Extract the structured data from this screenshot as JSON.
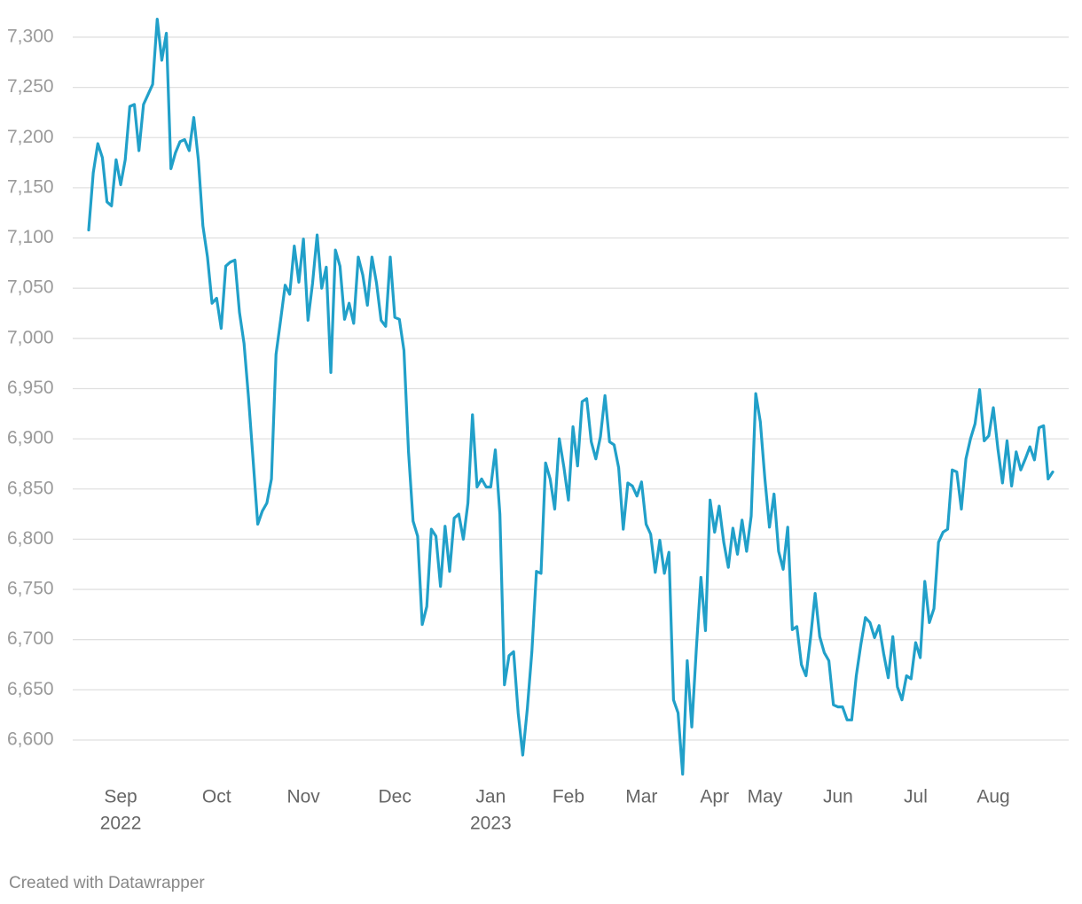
{
  "chart_data": {
    "type": "line",
    "source": "Created with Datawrapper",
    "categories": [
      null,
      null,
      null,
      null,
      null,
      null,
      null,
      [
        "Sep",
        "2022"
      ],
      null,
      null,
      null,
      null,
      null,
      null,
      null,
      null,
      null,
      null,
      null,
      null,
      null,
      null,
      null,
      null,
      null,
      null,
      null,
      null,
      "Oct",
      null,
      null,
      null,
      null,
      null,
      null,
      null,
      null,
      null,
      null,
      null,
      null,
      null,
      null,
      null,
      null,
      null,
      null,
      "Nov",
      null,
      null,
      null,
      null,
      null,
      null,
      null,
      null,
      null,
      null,
      null,
      null,
      null,
      null,
      null,
      null,
      null,
      null,
      null,
      "Dec",
      null,
      null,
      null,
      null,
      null,
      null,
      null,
      null,
      null,
      null,
      null,
      null,
      null,
      null,
      null,
      null,
      null,
      null,
      null,
      null,
      [
        "Jan",
        "2023"
      ],
      null,
      null,
      null,
      null,
      null,
      null,
      null,
      null,
      null,
      null,
      null,
      null,
      null,
      null,
      null,
      null,
      "Feb",
      null,
      null,
      null,
      null,
      null,
      null,
      null,
      null,
      null,
      null,
      null,
      null,
      null,
      null,
      null,
      "Mar",
      null,
      null,
      null,
      null,
      null,
      null,
      null,
      null,
      null,
      null,
      null,
      null,
      null,
      null,
      null,
      "Apr",
      null,
      null,
      null,
      null,
      null,
      null,
      null,
      null,
      null,
      null,
      "May",
      null,
      null,
      null,
      null,
      null,
      null,
      null,
      null,
      null,
      null,
      null,
      null,
      null,
      null,
      null,
      "Jun",
      null,
      null,
      null,
      null,
      null,
      null,
      null,
      null,
      null,
      null,
      null,
      null,
      null,
      null,
      null,
      null,
      "Jul",
      null,
      null,
      null,
      null,
      null,
      null,
      null,
      null,
      null,
      null,
      null,
      null,
      null,
      null,
      null,
      null,
      "Aug",
      null,
      null,
      null,
      null,
      null,
      null,
      null,
      null,
      null,
      null,
      null,
      null,
      null
    ],
    "series": [
      {
        "color": "#21a0c9",
        "values": [
          7108,
          7165,
          7194,
          7180,
          7136,
          7132,
          7178,
          7153,
          7178,
          7231,
          7233,
          7187,
          7233,
          7243,
          7253,
          7318,
          7277,
          7304,
          7169,
          7185,
          7196,
          7198,
          7187,
          7220,
          7178,
          7112,
          7081,
          7035,
          7040,
          7010,
          7072,
          7076,
          7078,
          7026,
          6995,
          6940,
          6878,
          6815,
          6828,
          6836,
          6860,
          6984,
          7018,
          7053,
          7044,
          7092,
          7056,
          7099,
          7018,
          7055,
          7103,
          7050,
          7071,
          6966,
          7088,
          7072,
          7019,
          7035,
          7015,
          7081,
          7063,
          7033,
          7081,
          7055,
          7018,
          7012,
          7081,
          7021,
          7019,
          6988,
          6887,
          6818,
          6803,
          6715,
          6733,
          6810,
          6803,
          6753,
          6813,
          6768,
          6821,
          6825,
          6800,
          6836,
          6924,
          6852,
          6860,
          6852,
          6852,
          6889,
          6825,
          6655,
          6684,
          6688,
          6627,
          6585,
          6631,
          6688,
          6768,
          6766,
          6876,
          6860,
          6830,
          6900,
          6872,
          6839,
          6912,
          6873,
          6937,
          6940,
          6897,
          6880,
          6902,
          6943,
          6897,
          6894,
          6871,
          6810,
          6856,
          6853,
          6843,
          6857,
          6815,
          6805,
          6767,
          6799,
          6766,
          6787,
          6640,
          6627,
          6566,
          6679,
          6613,
          6691,
          6762,
          6709,
          6839,
          6807,
          6833,
          6797,
          6772,
          6811,
          6785,
          6819,
          6788,
          6823,
          6945,
          6917,
          6860,
          6812,
          6845,
          6788,
          6770,
          6812,
          6710,
          6713,
          6675,
          6664,
          6702,
          6746,
          6703,
          6687,
          6679,
          6635,
          6633,
          6633,
          6620,
          6620,
          6664,
          6695,
          6722,
          6717,
          6702,
          6714,
          6686,
          6662,
          6703,
          6653,
          6640,
          6664,
          6661,
          6697,
          6682,
          6758,
          6717,
          6731,
          6797,
          6807,
          6810,
          6869,
          6867,
          6830,
          6880,
          6900,
          6915,
          6949,
          6898,
          6903,
          6931,
          6890,
          6856,
          6898,
          6853,
          6887,
          6869,
          6880,
          6892,
          6879,
          6911,
          6913,
          6860,
          6867
        ]
      }
    ],
    "ylim": [
      6560,
      7320
    ],
    "yticks": [
      {
        "value": 6600,
        "label": "6,600"
      },
      {
        "value": 6650,
        "label": "6,650"
      },
      {
        "value": 6700,
        "label": "6,700"
      },
      {
        "value": 6750,
        "label": "6,750"
      },
      {
        "value": 6800,
        "label": "6,800"
      },
      {
        "value": 6850,
        "label": "6,850"
      },
      {
        "value": 6900,
        "label": "6,900"
      },
      {
        "value": 6950,
        "label": "6,950"
      },
      {
        "value": 7000,
        "label": "7,000"
      },
      {
        "value": 7050,
        "label": "7,050"
      },
      {
        "value": 7100,
        "label": "7,100"
      },
      {
        "value": 7150,
        "label": "7,150"
      },
      {
        "value": 7200,
        "label": "7,200"
      },
      {
        "value": 7250,
        "label": "7,250"
      },
      {
        "value": 7300,
        "label": "7,300"
      }
    ],
    "grid": true
  }
}
